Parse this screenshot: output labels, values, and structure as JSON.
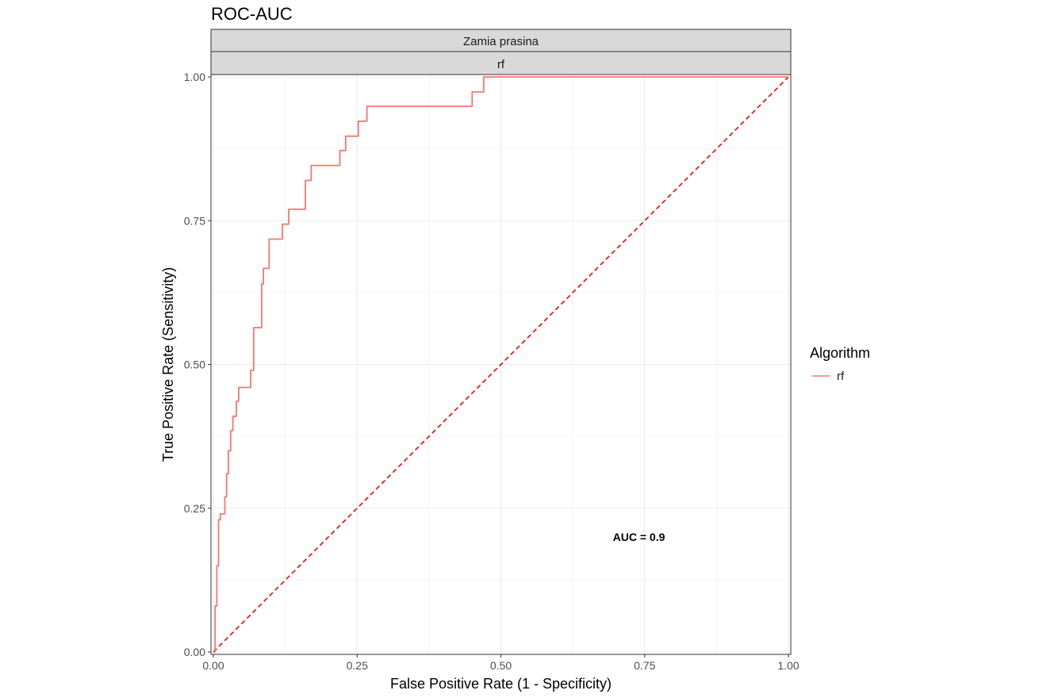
{
  "chart_data": {
    "type": "line",
    "title": "ROC-AUC",
    "facet_labels": [
      "Zamia prasina",
      "rf"
    ],
    "xlabel": "False Positive Rate (1 - Specificity)",
    "ylabel": "True Positive Rate (Sensitivity)",
    "xlim": [
      0,
      1
    ],
    "ylim": [
      0,
      1
    ],
    "x_ticks": [
      0,
      0.25,
      0.5,
      0.75,
      1
    ],
    "x_tick_labels": [
      "0.00",
      "0.25",
      "0.50",
      "0.75",
      "1.00"
    ],
    "y_ticks": [
      0,
      0.25,
      0.5,
      0.75,
      1
    ],
    "y_tick_labels": [
      "0.00",
      "0.25",
      "0.50",
      "0.75",
      "1.00"
    ],
    "grid": true,
    "legend": {
      "title": "Algorithm",
      "position": "right"
    },
    "annotation": {
      "text": "AUC = 0.9",
      "x": 0.74,
      "y": 0.2
    },
    "colors": {
      "series": "#F8766D",
      "reference": "#FF0000",
      "strip_fill": "#D9D9D9",
      "grid": "#EBEBEB"
    },
    "series": [
      {
        "name": "rf",
        "x": [
          0,
          0.003,
          0.003,
          0.006,
          0.006,
          0.009,
          0.009,
          0.012,
          0.012,
          0.02,
          0.02,
          0.023,
          0.023,
          0.026,
          0.026,
          0.03,
          0.03,
          0.034,
          0.034,
          0.04,
          0.04,
          0.044,
          0.044,
          0.05,
          0.05,
          0.056,
          0.056,
          0.065,
          0.065,
          0.07,
          0.07,
          0.084,
          0.084,
          0.087,
          0.087,
          0.097,
          0.097,
          0.105,
          0.105,
          0.12,
          0.12,
          0.131,
          0.131,
          0.16,
          0.16,
          0.17,
          0.17,
          0.22,
          0.22,
          0.23,
          0.23,
          0.252,
          0.252,
          0.267,
          0.267,
          0.45,
          0.45,
          0.47,
          0.47,
          1.0
        ],
        "y": [
          0,
          0,
          0.08,
          0.08,
          0.15,
          0.15,
          0.23,
          0.23,
          0.24,
          0.24,
          0.27,
          0.27,
          0.31,
          0.31,
          0.35,
          0.35,
          0.385,
          0.385,
          0.41,
          0.41,
          0.436,
          0.436,
          0.46,
          0.46,
          0.46,
          0.46,
          0.46,
          0.46,
          0.49,
          0.49,
          0.564,
          0.564,
          0.64,
          0.64,
          0.667,
          0.667,
          0.718,
          0.718,
          0.718,
          0.718,
          0.744,
          0.744,
          0.77,
          0.77,
          0.82,
          0.82,
          0.846,
          0.846,
          0.872,
          0.872,
          0.897,
          0.897,
          0.923,
          0.923,
          0.949,
          0.949,
          0.974,
          0.974,
          1.0,
          1.0
        ]
      },
      {
        "name": "reference",
        "x": [
          0,
          1
        ],
        "y": [
          0,
          1
        ]
      }
    ]
  }
}
